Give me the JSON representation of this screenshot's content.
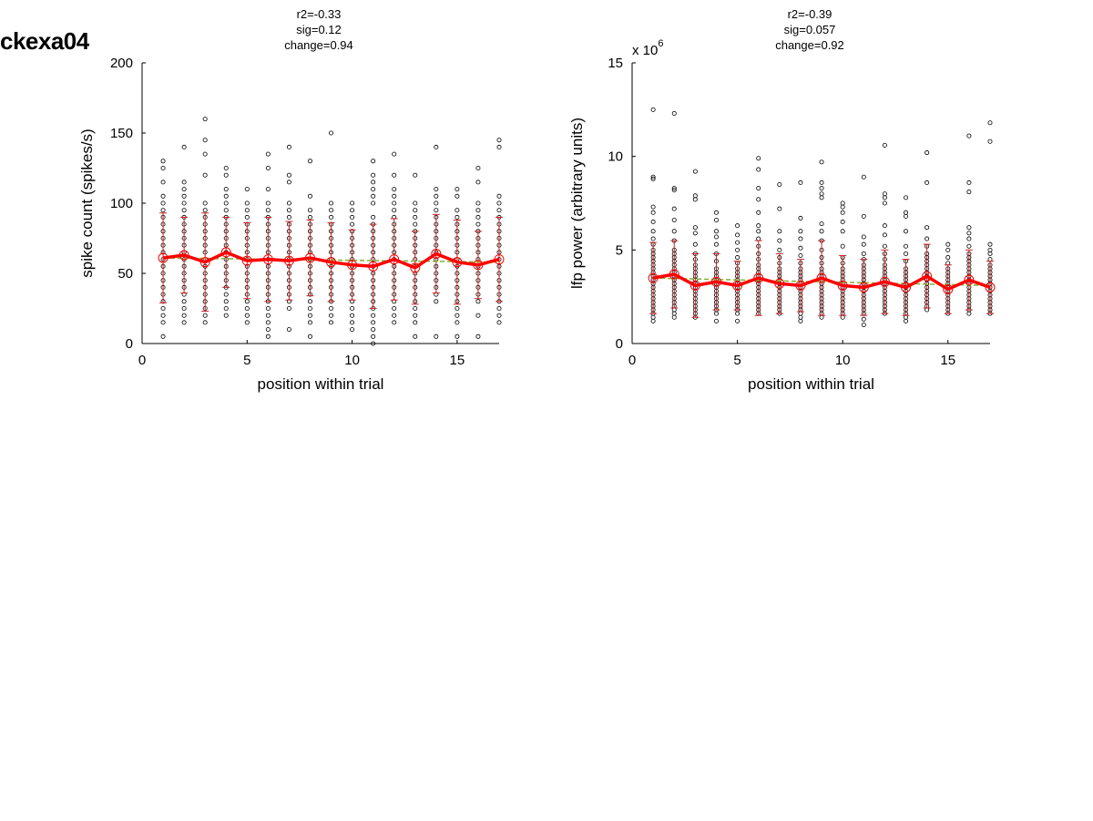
{
  "figure": {
    "title": "ckexa04"
  },
  "panels": {
    "left": {
      "stats": [
        "r2=-0.33",
        "sig=0.12",
        "change=0.94"
      ]
    },
    "right": {
      "stats": [
        "r2=-0.39",
        "sig=0.057",
        "change=0.92"
      ]
    }
  },
  "colors": {
    "points": "#000000",
    "mean_line": "#ff0000",
    "error_bars": "#cc2222",
    "fit_line": "#7db32a"
  },
  "chart_data": [
    {
      "type": "scatter",
      "xlabel": "position within trial",
      "ylabel": "spike count (spikes/s)",
      "xlim": [
        0,
        17
      ],
      "ylim": [
        0,
        200
      ],
      "xticks": [
        0,
        5,
        10,
        15
      ],
      "yticks": [
        0,
        50,
        100,
        150,
        200
      ],
      "scale_note": "",
      "x": [
        1,
        2,
        3,
        4,
        5,
        6,
        7,
        8,
        9,
        10,
        11,
        12,
        13,
        14,
        15,
        16,
        17
      ],
      "mean": [
        61,
        63,
        58,
        65,
        59,
        60,
        59,
        61,
        58,
        56,
        55,
        60,
        54,
        64,
        58,
        56,
        60
      ],
      "std": [
        32,
        27,
        35,
        25,
        27,
        30,
        28,
        27,
        28,
        25,
        30,
        29,
        26,
        28,
        30,
        24,
        30
      ],
      "fit": [
        [
          1,
          61
        ],
        [
          17,
          58
        ]
      ],
      "points": [
        [
          5,
          15,
          20,
          25,
          30,
          35,
          40,
          45,
          50,
          55,
          60,
          65,
          70,
          75,
          80,
          85,
          90,
          95,
          100,
          105,
          115,
          125,
          130
        ],
        [
          15,
          20,
          25,
          30,
          35,
          40,
          45,
          50,
          55,
          60,
          65,
          70,
          75,
          80,
          85,
          90,
          95,
          100,
          105,
          110,
          115,
          140
        ],
        [
          15,
          20,
          25,
          30,
          35,
          40,
          45,
          50,
          55,
          60,
          65,
          70,
          75,
          80,
          85,
          90,
          95,
          100,
          120,
          135,
          145,
          160
        ],
        [
          20,
          25,
          30,
          35,
          40,
          45,
          50,
          55,
          60,
          65,
          70,
          75,
          80,
          85,
          90,
          95,
          100,
          105,
          110,
          120,
          125
        ],
        [
          15,
          20,
          25,
          30,
          35,
          40,
          45,
          50,
          55,
          60,
          65,
          70,
          75,
          80,
          85,
          90,
          95,
          100,
          110
        ],
        [
          5,
          10,
          15,
          20,
          25,
          30,
          35,
          40,
          45,
          50,
          55,
          60,
          65,
          70,
          75,
          80,
          85,
          90,
          95,
          100,
          110,
          125,
          135
        ],
        [
          10,
          25,
          30,
          35,
          40,
          45,
          50,
          55,
          60,
          65,
          70,
          75,
          80,
          85,
          90,
          95,
          100,
          115,
          120,
          140
        ],
        [
          5,
          15,
          20,
          25,
          30,
          35,
          40,
          45,
          50,
          55,
          60,
          65,
          70,
          75,
          80,
          85,
          90,
          95,
          105,
          130
        ],
        [
          15,
          20,
          25,
          30,
          35,
          40,
          45,
          50,
          55,
          60,
          65,
          70,
          75,
          80,
          85,
          90,
          95,
          100,
          150
        ],
        [
          10,
          15,
          20,
          25,
          30,
          35,
          40,
          45,
          50,
          55,
          60,
          65,
          70,
          75,
          80,
          85,
          90,
          95,
          100
        ],
        [
          0,
          5,
          10,
          15,
          20,
          25,
          30,
          35,
          40,
          45,
          50,
          55,
          60,
          65,
          70,
          75,
          80,
          85,
          90,
          100,
          105,
          110,
          115,
          120,
          130
        ],
        [
          15,
          20,
          25,
          30,
          35,
          40,
          45,
          50,
          55,
          60,
          65,
          70,
          75,
          80,
          85,
          90,
          95,
          100,
          105,
          110,
          120,
          135
        ],
        [
          5,
          15,
          20,
          25,
          30,
          35,
          40,
          45,
          50,
          55,
          60,
          65,
          70,
          75,
          80,
          85,
          90,
          95,
          100,
          120
        ],
        [
          5,
          30,
          35,
          40,
          45,
          50,
          55,
          60,
          65,
          70,
          75,
          80,
          85,
          90,
          95,
          100,
          105,
          110,
          140
        ],
        [
          5,
          15,
          20,
          25,
          30,
          35,
          40,
          45,
          50,
          55,
          60,
          65,
          70,
          75,
          80,
          85,
          90,
          95,
          105,
          110
        ],
        [
          5,
          20,
          30,
          35,
          40,
          45,
          50,
          55,
          60,
          65,
          70,
          75,
          80,
          85,
          90,
          95,
          100,
          115,
          125
        ],
        [
          15,
          20,
          25,
          30,
          35,
          40,
          45,
          50,
          55,
          60,
          65,
          70,
          75,
          80,
          85,
          90,
          95,
          100,
          105,
          140,
          145
        ]
      ]
    },
    {
      "type": "scatter",
      "xlabel": "position within trial",
      "ylabel": "lfp power (arbitrary units)",
      "xlim": [
        0,
        17
      ],
      "ylim": [
        0,
        15
      ],
      "xticks": [
        0,
        5,
        10,
        15
      ],
      "yticks": [
        0,
        5,
        10,
        15
      ],
      "scale_note": "x 10^6",
      "x": [
        1,
        2,
        3,
        4,
        5,
        6,
        7,
        8,
        9,
        10,
        11,
        12,
        13,
        14,
        15,
        16,
        17
      ],
      "mean": [
        3.5,
        3.7,
        3.1,
        3.3,
        3.1,
        3.5,
        3.2,
        3.1,
        3.5,
        3.1,
        3.0,
        3.3,
        3.0,
        3.6,
        2.9,
        3.4,
        3.0
      ],
      "std": [
        1.9,
        1.8,
        1.7,
        1.5,
        1.3,
        2.0,
        1.6,
        1.4,
        2.0,
        1.6,
        1.5,
        1.7,
        1.5,
        1.7,
        1.3,
        1.6,
        1.4
      ],
      "fit": [
        [
          1,
          3.5
        ],
        [
          17,
          3.1
        ]
      ],
      "points": [
        [
          1.2,
          1.4,
          1.6,
          1.8,
          2.0,
          2.2,
          2.4,
          2.6,
          2.8,
          3.0,
          3.2,
          3.4,
          3.6,
          3.8,
          4.0,
          4.2,
          4.4,
          4.6,
          4.8,
          5.0,
          5.3,
          5.6,
          6.0,
          6.5,
          7.0,
          7.3,
          8.8,
          8.9,
          12.5
        ],
        [
          1.4,
          1.6,
          1.8,
          2.0,
          2.2,
          2.4,
          2.6,
          2.8,
          3.0,
          3.2,
          3.4,
          3.6,
          3.8,
          4.0,
          4.2,
          4.4,
          4.6,
          4.8,
          5.0,
          5.5,
          6.0,
          6.6,
          7.2,
          8.2,
          8.3,
          12.3
        ],
        [
          1.4,
          1.6,
          1.8,
          2.0,
          2.2,
          2.4,
          2.6,
          2.8,
          3.0,
          3.2,
          3.4,
          3.6,
          3.8,
          4.0,
          4.2,
          4.5,
          4.8,
          5.3,
          5.9,
          6.2,
          7.7,
          7.9,
          9.2
        ],
        [
          1.2,
          1.6,
          1.8,
          2.0,
          2.2,
          2.4,
          2.6,
          2.8,
          3.0,
          3.2,
          3.4,
          3.6,
          3.8,
          4.0,
          4.4,
          4.8,
          5.3,
          5.7,
          6.0,
          6.6,
          7.0
        ],
        [
          1.2,
          1.6,
          1.8,
          2.0,
          2.2,
          2.4,
          2.6,
          2.8,
          3.0,
          3.2,
          3.4,
          3.6,
          3.8,
          4.0,
          4.3,
          4.6,
          5.0,
          5.4,
          5.8,
          6.3
        ],
        [
          1.6,
          1.8,
          2.0,
          2.2,
          2.4,
          2.6,
          2.8,
          3.0,
          3.2,
          3.4,
          3.6,
          3.8,
          4.0,
          4.2,
          4.5,
          4.8,
          5.2,
          5.6,
          6.0,
          6.3,
          7.0,
          7.7,
          8.3,
          9.3,
          9.9
        ],
        [
          1.6,
          1.8,
          2.0,
          2.2,
          2.4,
          2.6,
          2.8,
          3.0,
          3.2,
          3.4,
          3.6,
          3.8,
          4.0,
          4.3,
          4.6,
          5.0,
          5.5,
          6.0,
          7.2,
          8.5
        ],
        [
          1.2,
          1.4,
          1.6,
          1.8,
          2.0,
          2.2,
          2.4,
          2.6,
          2.8,
          3.0,
          3.2,
          3.4,
          3.6,
          3.8,
          4.0,
          4.3,
          4.7,
          5.1,
          5.6,
          6.0,
          6.7,
          8.6
        ],
        [
          1.4,
          1.6,
          1.8,
          2.0,
          2.2,
          2.4,
          2.6,
          2.8,
          3.0,
          3.2,
          3.4,
          3.6,
          3.8,
          4.0,
          4.3,
          4.6,
          5.0,
          5.5,
          6.0,
          6.4,
          7.8,
          8.0,
          8.3,
          8.6,
          9.7
        ],
        [
          1.4,
          1.6,
          1.8,
          2.0,
          2.2,
          2.4,
          2.6,
          2.8,
          3.0,
          3.2,
          3.4,
          3.6,
          3.8,
          4.0,
          4.3,
          4.6,
          5.2,
          6.0,
          6.5,
          7.0,
          7.3,
          7.5
        ],
        [
          1.0,
          1.3,
          1.6,
          1.8,
          2.0,
          2.2,
          2.4,
          2.6,
          2.8,
          3.0,
          3.2,
          3.4,
          3.6,
          3.8,
          4.0,
          4.2,
          4.5,
          4.8,
          5.3,
          5.7,
          6.8,
          8.9
        ],
        [
          1.6,
          1.8,
          2.0,
          2.2,
          2.4,
          2.6,
          2.8,
          3.0,
          3.2,
          3.4,
          3.6,
          3.8,
          4.0,
          4.2,
          4.5,
          4.8,
          5.2,
          5.8,
          6.3,
          7.5,
          7.8,
          8.0,
          10.6
        ],
        [
          1.2,
          1.4,
          1.6,
          1.8,
          2.0,
          2.2,
          2.4,
          2.6,
          2.8,
          3.0,
          3.2,
          3.4,
          3.6,
          3.8,
          4.0,
          4.4,
          4.8,
          5.2,
          6.0,
          6.8,
          7.0,
          7.8
        ],
        [
          1.8,
          2.0,
          2.2,
          2.4,
          2.6,
          2.8,
          3.0,
          3.2,
          3.4,
          3.6,
          3.8,
          4.0,
          4.2,
          4.4,
          4.6,
          4.8,
          5.2,
          5.6,
          6.2,
          8.6,
          10.2
        ],
        [
          1.6,
          1.8,
          2.0,
          2.2,
          2.4,
          2.6,
          2.8,
          3.0,
          3.2,
          3.4,
          3.6,
          3.8,
          4.0,
          4.3,
          4.6,
          5.0,
          5.3
        ],
        [
          1.6,
          1.8,
          2.0,
          2.2,
          2.4,
          2.6,
          2.8,
          3.0,
          3.2,
          3.4,
          3.6,
          3.8,
          4.0,
          4.2,
          4.4,
          4.6,
          4.8,
          5.2,
          5.6,
          5.9,
          6.2,
          8.1,
          8.6,
          11.1
        ],
        [
          1.6,
          1.8,
          2.0,
          2.2,
          2.4,
          2.6,
          2.8,
          3.0,
          3.2,
          3.4,
          3.6,
          3.8,
          4.0,
          4.2,
          4.5,
          4.8,
          5.0,
          5.3,
          10.8,
          11.8
        ]
      ]
    }
  ]
}
